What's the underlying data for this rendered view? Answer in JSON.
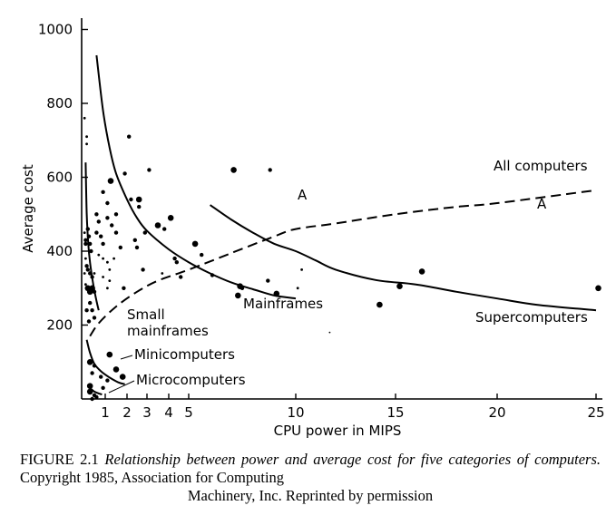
{
  "chart_data": {
    "type": "scatter",
    "xlabel": "CPU power in MIPS",
    "ylabel": "Average cost",
    "xticks": [
      1,
      2,
      3,
      4,
      5,
      10,
      15,
      20,
      25
    ],
    "xtick_labels": [
      "1",
      "2",
      "3",
      "4",
      "5",
      "10",
      "15",
      "20",
      "25"
    ],
    "yticks": [
      200,
      400,
      600,
      800,
      1000
    ],
    "ytick_labels": [
      "200",
      "400",
      "600",
      "800",
      "1000"
    ],
    "xlim": [
      0,
      25.2
    ],
    "ylim": [
      0,
      1040
    ],
    "curves": [
      {
        "name": "Small mainframes",
        "style": "solid",
        "points": [
          [
            0.1,
            640
          ],
          [
            0.15,
            500
          ],
          [
            0.22,
            420
          ],
          [
            0.3,
            370
          ],
          [
            0.45,
            310
          ],
          [
            0.6,
            265
          ],
          [
            0.7,
            240
          ]
        ]
      },
      {
        "name": "Minicomputers",
        "style": "solid",
        "points": [
          [
            0.15,
            160
          ],
          [
            0.3,
            125
          ],
          [
            0.5,
            95
          ],
          [
            0.8,
            75
          ],
          [
            1.2,
            58
          ],
          [
            1.6,
            45
          ],
          [
            1.9,
            40
          ]
        ]
      },
      {
        "name": "Microcomputers",
        "style": "solid",
        "points": [
          [
            0.2,
            40
          ],
          [
            0.3,
            30
          ],
          [
            0.5,
            20
          ],
          [
            0.7,
            15
          ],
          [
            0.85,
            12
          ]
        ]
      },
      {
        "name": "Mainframes",
        "style": "solid",
        "points": [
          [
            0.6,
            930
          ],
          [
            0.9,
            780
          ],
          [
            1.2,
            680
          ],
          [
            1.5,
            610
          ],
          [
            2,
            540
          ],
          [
            2.5,
            490
          ],
          [
            3,
            455
          ],
          [
            4,
            405
          ],
          [
            5,
            370
          ],
          [
            6,
            340
          ],
          [
            7,
            315
          ],
          [
            8,
            297
          ],
          [
            9,
            280
          ],
          [
            10,
            272
          ]
        ]
      },
      {
        "name": "Supercomputers",
        "style": "solid",
        "points": [
          [
            6,
            525
          ],
          [
            7,
            485
          ],
          [
            8,
            450
          ],
          [
            9,
            420
          ],
          [
            10,
            400
          ],
          [
            11,
            375
          ],
          [
            12,
            350
          ],
          [
            14,
            322
          ],
          [
            16,
            310
          ],
          [
            18,
            290
          ],
          [
            20,
            272
          ],
          [
            22,
            255
          ],
          [
            25,
            240
          ]
        ]
      },
      {
        "name": "All computers",
        "style": "dashed",
        "points": [
          [
            0.3,
            170
          ],
          [
            0.7,
            205
          ],
          [
            1.5,
            250
          ],
          [
            2.5,
            290
          ],
          [
            3.5,
            320
          ],
          [
            5,
            350
          ],
          [
            7,
            395
          ],
          [
            9,
            440
          ],
          [
            10,
            460
          ],
          [
            12,
            475
          ],
          [
            15,
            500
          ],
          [
            18,
            520
          ],
          [
            20,
            530
          ],
          [
            25,
            565
          ]
        ]
      }
    ],
    "annotations": [
      {
        "text": "A",
        "x": 9.4,
        "y": 545
      },
      {
        "text": "A",
        "x": 20.8,
        "y": 500
      }
    ],
    "points": [
      [
        0.05,
        760,
        2
      ],
      [
        0.15,
        710,
        2
      ],
      [
        0.15,
        690,
        2
      ],
      [
        0.05,
        450,
        2
      ],
      [
        0.1,
        430,
        3
      ],
      [
        0.1,
        420,
        3
      ],
      [
        0.2,
        460,
        3
      ],
      [
        0.25,
        440,
        3
      ],
      [
        0.3,
        420,
        3
      ],
      [
        0.35,
        400,
        3
      ],
      [
        0.1,
        380,
        2
      ],
      [
        0.15,
        360,
        3
      ],
      [
        0.2,
        350,
        3
      ],
      [
        0.3,
        340,
        3
      ],
      [
        0.4,
        330,
        3
      ],
      [
        0.2,
        300,
        4
      ],
      [
        0.3,
        290,
        4
      ],
      [
        0.4,
        300,
        4
      ],
      [
        0.5,
        290,
        3
      ],
      [
        0.3,
        260,
        3
      ],
      [
        0.4,
        240,
        3
      ],
      [
        0.5,
        220,
        3
      ],
      [
        0.6,
        500,
        3
      ],
      [
        0.7,
        480,
        3
      ],
      [
        0.6,
        450,
        3
      ],
      [
        0.8,
        440,
        3
      ],
      [
        0.9,
        420,
        3
      ],
      [
        0.7,
        390,
        2
      ],
      [
        0.9,
        380,
        2
      ],
      [
        1.1,
        370,
        2
      ],
      [
        0.5,
        340,
        2
      ],
      [
        0.9,
        330,
        2
      ],
      [
        1.2,
        320,
        2
      ],
      [
        1.4,
        380,
        2
      ],
      [
        1.2,
        350,
        2
      ],
      [
        1.1,
        300,
        2
      ],
      [
        0.1,
        310,
        2
      ],
      [
        0.05,
        340,
        2
      ],
      [
        0.15,
        240,
        3
      ],
      [
        0.25,
        210,
        3
      ],
      [
        0.9,
        560,
        3
      ],
      [
        1.1,
        530,
        3
      ],
      [
        1.25,
        590,
        4
      ],
      [
        1.1,
        490,
        3
      ],
      [
        1.3,
        470,
        3
      ],
      [
        1.5,
        500,
        3
      ],
      [
        1.5,
        450,
        3
      ],
      [
        1.7,
        410,
        3
      ],
      [
        1.85,
        300,
        3
      ],
      [
        2.1,
        710,
        3
      ],
      [
        2.2,
        540,
        3
      ],
      [
        2.4,
        430,
        3
      ],
      [
        2.5,
        410,
        3
      ],
      [
        2.6,
        520,
        3
      ],
      [
        2.8,
        350,
        3
      ],
      [
        2.9,
        450,
        3
      ],
      [
        1.9,
        610,
        3
      ],
      [
        2.6,
        540,
        4
      ],
      [
        3.1,
        620,
        3
      ],
      [
        3.8,
        460,
        3
      ],
      [
        3.5,
        470,
        4
      ],
      [
        4.1,
        490,
        4
      ],
      [
        4.4,
        370,
        3
      ],
      [
        4.6,
        330,
        3
      ],
      [
        3.7,
        340,
        2
      ],
      [
        4.3,
        380,
        3
      ],
      [
        5.3,
        420,
        4
      ],
      [
        5.6,
        390,
        3
      ],
      [
        6.1,
        335,
        3
      ],
      [
        7.1,
        620,
        4
      ],
      [
        7.4,
        305,
        4
      ],
      [
        7.3,
        280,
        4
      ],
      [
        7.5,
        300,
        3
      ],
      [
        8.8,
        620,
        3
      ],
      [
        8.7,
        320,
        3
      ],
      [
        9.1,
        285,
        4
      ],
      [
        10.3,
        350,
        2
      ],
      [
        10.1,
        300,
        2
      ],
      [
        11.7,
        180,
        1
      ],
      [
        14.2,
        255,
        4
      ],
      [
        15.2,
        305,
        4
      ],
      [
        16.3,
        345,
        4
      ],
      [
        25.1,
        300,
        4
      ],
      [
        0.3,
        100,
        4
      ],
      [
        0.5,
        90,
        3
      ],
      [
        0.4,
        70,
        3
      ],
      [
        0.8,
        60,
        3
      ],
      [
        1.2,
        120,
        4
      ],
      [
        1.5,
        80,
        4
      ],
      [
        1.8,
        60,
        4
      ],
      [
        0.9,
        30,
        3
      ],
      [
        1.1,
        50,
        3
      ],
      [
        0.3,
        35,
        4
      ],
      [
        0.3,
        20,
        4
      ],
      [
        0.5,
        10,
        3
      ],
      [
        0.6,
        5,
        3
      ],
      [
        0.4,
        0,
        3
      ]
    ]
  },
  "curve_labels": {
    "small_mainframes_1": "Small",
    "small_mainframes_2": "mainframes",
    "minicomputers": "Minicomputers",
    "microcomputers": "Microcomputers",
    "mainframes": "Mainframes",
    "supercomputers": "Supercomputers",
    "all_computers": "All computers"
  },
  "caption": {
    "label": "FIGURE 2.1",
    "title": "Relationship between power and average cost for five categories of computers.",
    "credit": "Copyright 1985, Association for Computing",
    "credit_last": "Machinery, Inc. Reprinted by permission"
  }
}
